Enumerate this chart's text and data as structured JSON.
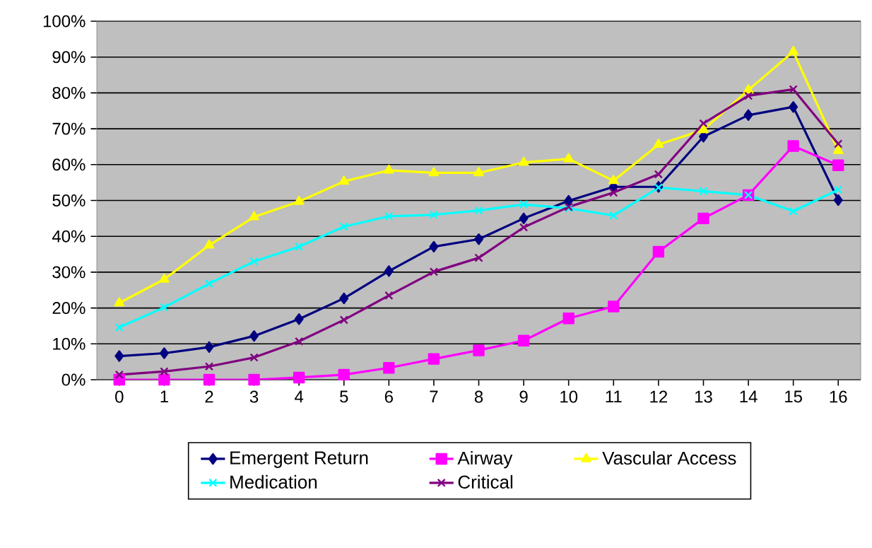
{
  "chart_data": {
    "type": "line",
    "categories": [
      "0",
      "1",
      "2",
      "3",
      "4",
      "5",
      "6",
      "7",
      "8",
      "9",
      "10",
      "11",
      "12",
      "13",
      "14",
      "15",
      "16"
    ],
    "series": [
      {
        "name": "Emergent Return",
        "color": "#000080",
        "marker": "diamond",
        "values": [
          6.6,
          7.4,
          9.1,
          12.2,
          16.9,
          22.7,
          30.3,
          37.1,
          39.2,
          45,
          49.9,
          53.8,
          53.8,
          67.8,
          73.8,
          76.1,
          50.1
        ]
      },
      {
        "name": "Airway",
        "color": "#ff00ff",
        "marker": "square",
        "values": [
          0,
          0,
          0,
          0,
          0.6,
          1.4,
          3.3,
          5.8,
          8.2,
          10.9,
          17.1,
          20.4,
          35.7,
          45,
          51.5,
          65.2,
          59.8
        ]
      },
      {
        "name": "Vascular Access",
        "color": "#ffff00",
        "marker": "triangle",
        "values": [
          21.4,
          28,
          37.5,
          45.4,
          49.7,
          55.3,
          58.4,
          57.7,
          57.7,
          60.6,
          61.6,
          55.5,
          65.6,
          69.7,
          80.8,
          91.5,
          63.9
        ]
      },
      {
        "name": "Medication",
        "color": "#00ffff",
        "marker": "cross",
        "values": [
          14.6,
          20.2,
          26.8,
          33,
          37.1,
          42.7,
          45.6,
          46,
          47.2,
          48.9,
          47.8,
          45.8,
          53.6,
          52.6,
          51.5,
          47,
          53
        ]
      },
      {
        "name": "Critical",
        "color": "#800080",
        "marker": "cross",
        "values": [
          1.4,
          2.3,
          3.7,
          6.2,
          10.7,
          16.7,
          23.5,
          30.1,
          34,
          42.5,
          48.2,
          52.2,
          57.3,
          71.5,
          79.2,
          81,
          65.8
        ]
      }
    ],
    "ylim": [
      0,
      100
    ],
    "yticks": [
      {
        "value": 0,
        "label": "0%"
      },
      {
        "value": 10,
        "label": "10%"
      },
      {
        "value": 20,
        "label": "20%"
      },
      {
        "value": 30,
        "label": "30%"
      },
      {
        "value": 40,
        "label": "40%"
      },
      {
        "value": 50,
        "label": "50%"
      },
      {
        "value": 60,
        "label": "60%"
      },
      {
        "value": 70,
        "label": "70%"
      },
      {
        "value": 80,
        "label": "80%"
      },
      {
        "value": 90,
        "label": "90%"
      },
      {
        "value": 100,
        "label": "100%"
      }
    ],
    "grid": "y",
    "legend": "bottom",
    "line_style": "solid"
  }
}
